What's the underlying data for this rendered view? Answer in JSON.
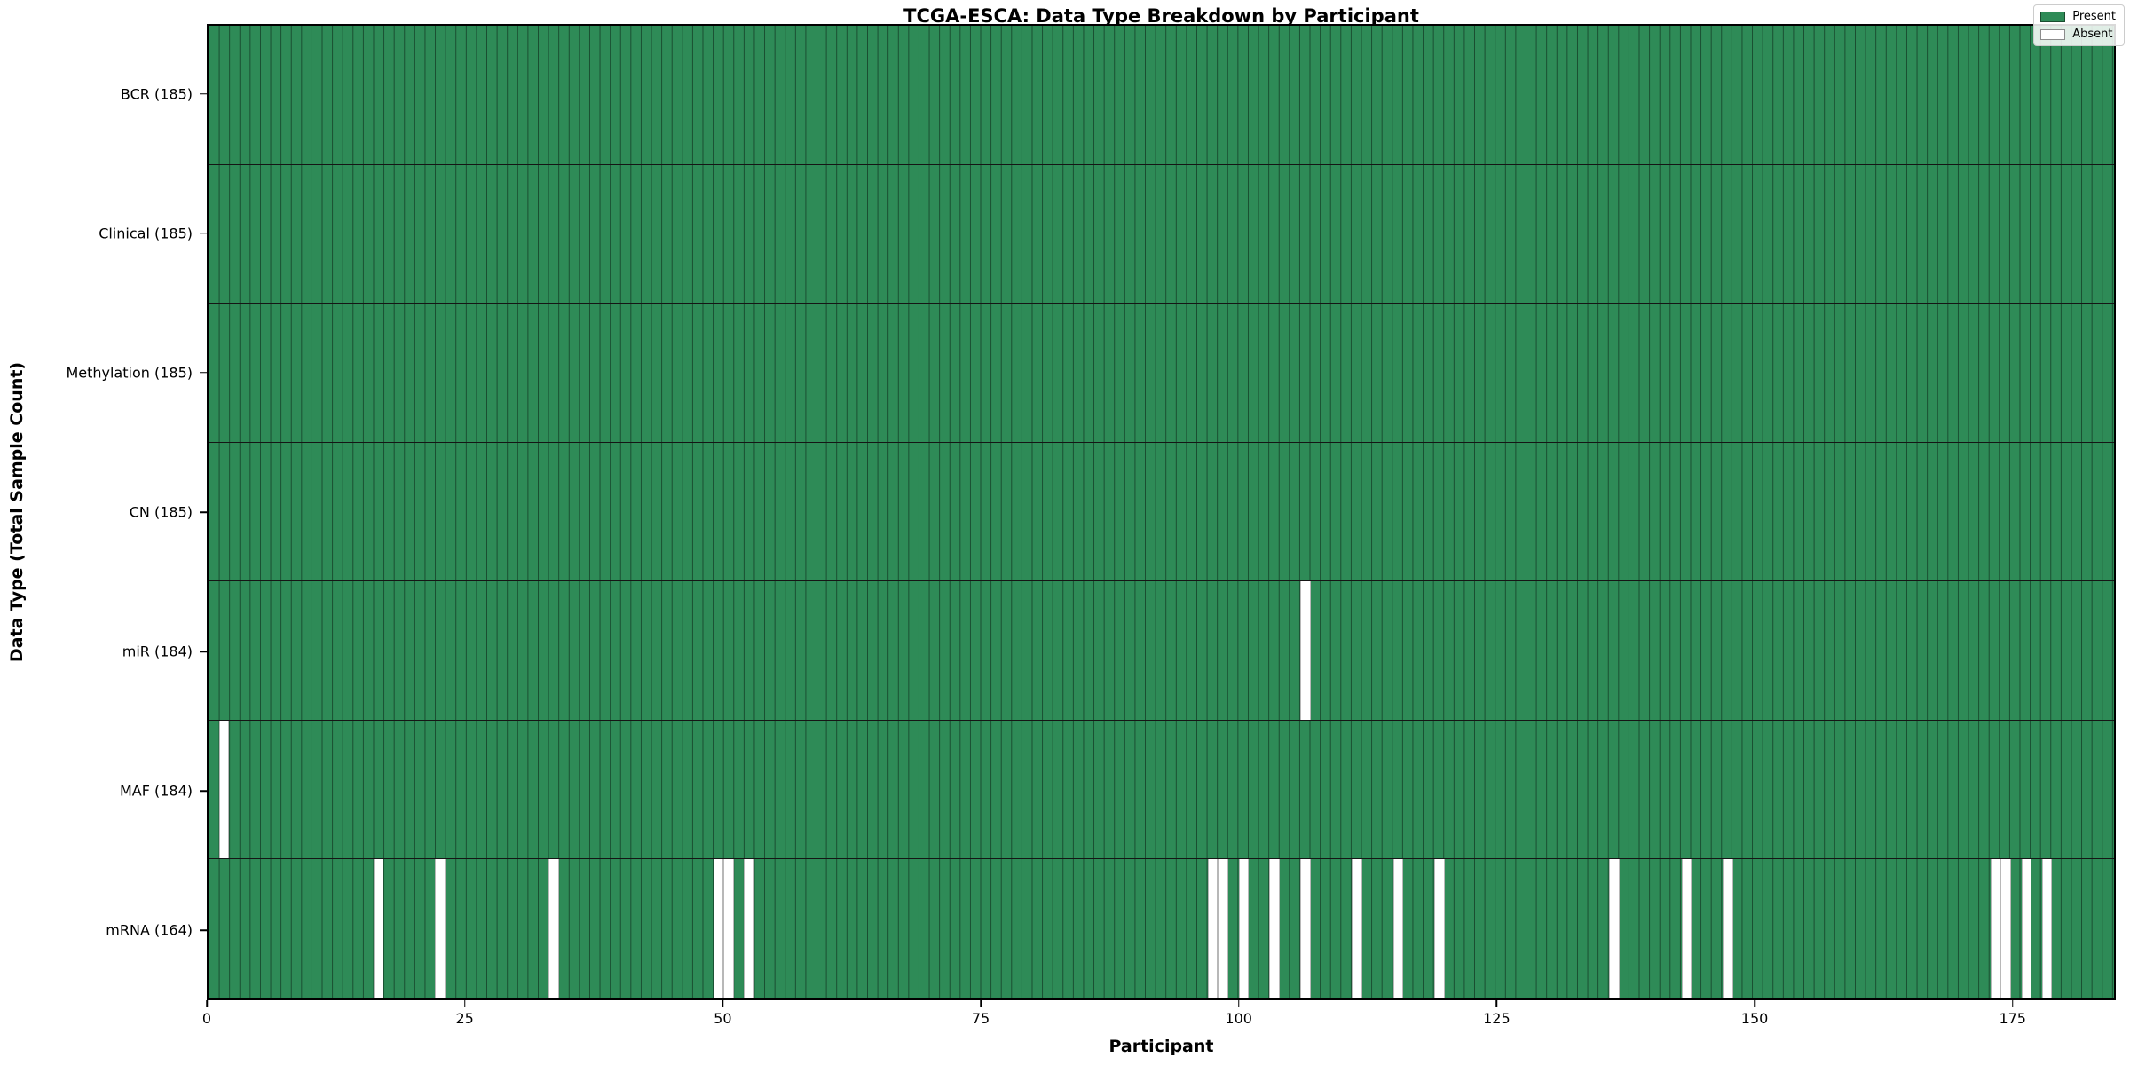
{
  "chart_data": {
    "type": "heatmap",
    "title": "TCGA-ESCA: Data Type Breakdown by Participant",
    "xlabel": "Participant",
    "ylabel": "Data Type (Total Sample Count)",
    "n_participants": 185,
    "x_ticks": [
      0,
      25,
      50,
      75,
      100,
      125,
      150,
      175
    ],
    "cell_states": {
      "present": 1,
      "absent": 0
    },
    "colors": {
      "present": "#2e8b57",
      "absent": "#ffffff"
    },
    "legend": [
      {
        "label": "Present",
        "color": "#2e8b57"
      },
      {
        "label": "Absent",
        "color": "#ffffff"
      }
    ],
    "legend_position": "upper right",
    "rows": [
      {
        "label": "BCR (185)",
        "data_type": "BCR",
        "total": 185,
        "absent_participants": []
      },
      {
        "label": "Clinical (185)",
        "data_type": "Clinical",
        "total": 185,
        "absent_participants": []
      },
      {
        "label": "Methylation (185)",
        "data_type": "Methylation",
        "total": 185,
        "absent_participants": []
      },
      {
        "label": "CN (185)",
        "data_type": "CN",
        "total": 185,
        "absent_participants": []
      },
      {
        "label": "miR (184)",
        "data_type": "miR",
        "total": 184,
        "absent_participants": [
          106
        ]
      },
      {
        "label": "MAF (184)",
        "data_type": "MAF",
        "total": 184,
        "absent_participants": [
          1
        ]
      },
      {
        "label": "mRNA (164)",
        "data_type": "mRNA",
        "total": 164,
        "absent_participants": [
          16,
          22,
          33,
          49,
          50,
          52,
          97,
          98,
          100,
          103,
          106,
          111,
          115,
          119,
          136,
          143,
          147,
          173,
          174,
          176,
          178
        ]
      }
    ]
  }
}
